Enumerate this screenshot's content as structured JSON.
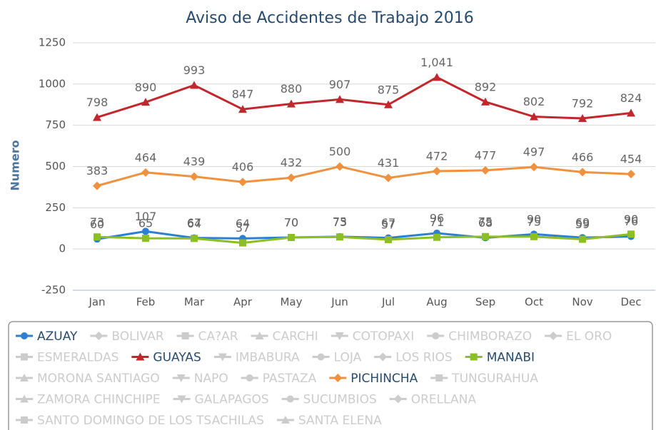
{
  "chart_data": {
    "type": "line",
    "title": "Aviso de Accidentes de Trabajo 2016",
    "y_label": "Numero",
    "categories": [
      "Jan",
      "Feb",
      "Mar",
      "Apr",
      "May",
      "Jun",
      "Jul",
      "Aug",
      "Sep",
      "Oct",
      "Nov",
      "Dec"
    ],
    "ylim": [
      -250,
      1250
    ],
    "yticks": [
      -250,
      0,
      250,
      500,
      750,
      1000,
      1250
    ],
    "grid": true,
    "series": [
      {
        "name": "AZUAY",
        "color": "#2b7fd4",
        "marker": "circle",
        "values": [
          60,
          107,
          67,
          64,
          70,
          75,
          67,
          96,
          68,
          90,
          69,
          76
        ]
      },
      {
        "name": "BOLIVAR",
        "color": "#cccccc",
        "marker": "diamond",
        "visible": false
      },
      {
        "name": "CA?AR",
        "color": "#cccccc",
        "marker": "square",
        "visible": false
      },
      {
        "name": "CARCHI",
        "color": "#cccccc",
        "marker": "triangle",
        "visible": false
      },
      {
        "name": "COTOPAXI",
        "color": "#cccccc",
        "marker": "triangle-down",
        "visible": false
      },
      {
        "name": "CHIMBORAZO",
        "color": "#cccccc",
        "marker": "circle",
        "visible": false
      },
      {
        "name": "EL ORO",
        "color": "#cccccc",
        "marker": "diamond",
        "visible": false
      },
      {
        "name": "ESMERALDAS",
        "color": "#cccccc",
        "marker": "square",
        "visible": false
      },
      {
        "name": "GUAYAS",
        "color": "#c1272d",
        "marker": "triangle",
        "values": [
          798,
          890,
          993,
          847,
          880,
          907,
          875,
          1041,
          892,
          802,
          792,
          824
        ],
        "value_labels": [
          "798",
          "890",
          "993",
          "847",
          "880",
          "907",
          "875",
          "1,041",
          "892",
          "802",
          "792",
          "824"
        ]
      },
      {
        "name": "IMBABURA",
        "color": "#cccccc",
        "marker": "triangle-down",
        "visible": false
      },
      {
        "name": "LOJA",
        "color": "#cccccc",
        "marker": "circle",
        "visible": false
      },
      {
        "name": "LOS RIOS",
        "color": "#cccccc",
        "marker": "diamond",
        "visible": false
      },
      {
        "name": "MANABI",
        "color": "#8cbf26",
        "marker": "square",
        "values": [
          73,
          65,
          64,
          37,
          70,
          73,
          57,
          71,
          75,
          75,
          59,
          90
        ]
      },
      {
        "name": "MORONA SANTIAGO",
        "color": "#cccccc",
        "marker": "triangle",
        "visible": false
      },
      {
        "name": "NAPO",
        "color": "#cccccc",
        "marker": "triangle-down",
        "visible": false
      },
      {
        "name": "PASTAZA",
        "color": "#cccccc",
        "marker": "circle",
        "visible": false
      },
      {
        "name": "PICHINCHA",
        "color": "#f0913f",
        "marker": "diamond",
        "values": [
          383,
          464,
          439,
          406,
          432,
          500,
          431,
          472,
          477,
          497,
          466,
          454
        ]
      },
      {
        "name": "TUNGURAHUA",
        "color": "#cccccc",
        "marker": "square",
        "visible": false
      },
      {
        "name": "ZAMORA CHINCHIPE",
        "color": "#cccccc",
        "marker": "triangle",
        "visible": false
      },
      {
        "name": "GALAPAGOS",
        "color": "#cccccc",
        "marker": "triangle-down",
        "visible": false
      },
      {
        "name": "SUCUMBIOS",
        "color": "#cccccc",
        "marker": "circle",
        "visible": false
      },
      {
        "name": "ORELLANA",
        "color": "#cccccc",
        "marker": "diamond",
        "visible": false
      },
      {
        "name": "SANTO DOMINGO DE LOS TSACHILAS",
        "color": "#cccccc",
        "marker": "square",
        "visible": false
      },
      {
        "name": "SANTA ELENA",
        "color": "#cccccc",
        "marker": "triangle",
        "visible": false
      }
    ]
  }
}
